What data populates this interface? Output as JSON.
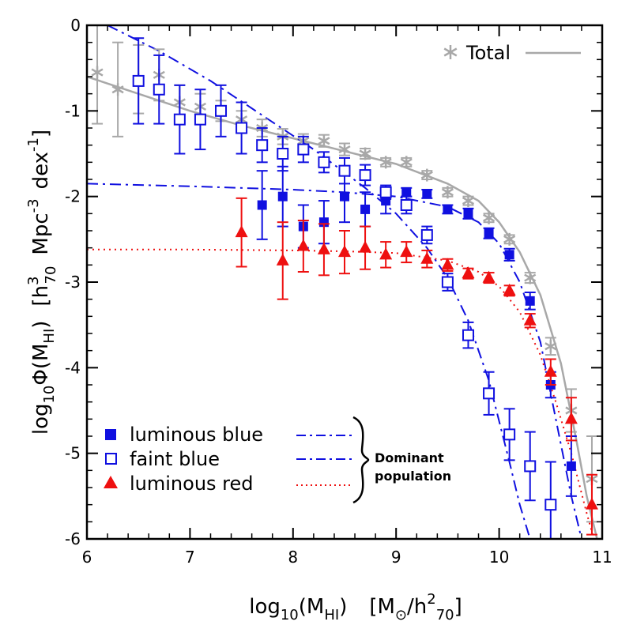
{
  "chart_data": {
    "type": "scatter",
    "xlabel": {
      "base": "log",
      "sub": "10",
      "paren": "(M",
      "paren_sub": "HI",
      "close": ")",
      "unit_open": "[M",
      "unit_sun": "⊙",
      "unit_slash": "/h",
      "unit_sup": "2",
      "unit_sub": "70",
      "unit_close": "]"
    },
    "ylabel": {
      "base": "log",
      "sub": "10",
      "phi": "Φ(M",
      "phi_sub": "HI",
      "close": ")",
      "unit_open": "[h",
      "unit_sup": "3",
      "unit_sub": "70",
      "mpc": "Mpc",
      "mpc_sup": "-3",
      "dex": "dex",
      "dex_sup": "-1",
      "unit_close": "]"
    },
    "xlim": [
      6,
      11
    ],
    "ylim": [
      -6,
      0
    ],
    "x_ticks": [
      "6",
      "7",
      "8",
      "9",
      "10",
      "11"
    ],
    "y_ticks": [
      "0",
      "-1",
      "-2",
      "-3",
      "-4",
      "-5",
      "-6"
    ],
    "colors": {
      "luminous_blue": "#1010e0",
      "faint_blue": "#1010e0",
      "luminous_red": "#ee1010",
      "total": "#a8a8a8"
    },
    "legend": {
      "items": [
        "luminous blue",
        "faint blue",
        "luminous red"
      ],
      "brace_label": [
        "Dominant",
        "population"
      ],
      "total": "Total"
    },
    "series": [
      {
        "name": "Total",
        "marker": "star",
        "color": "#a8a8a8",
        "points": [
          [
            6.1,
            -0.55,
            0.6
          ],
          [
            6.3,
            -0.75,
            0.55
          ],
          [
            6.5,
            -0.63,
            0.4
          ],
          [
            6.7,
            -0.58,
            0.3
          ],
          [
            6.9,
            -0.9,
            0.2
          ],
          [
            7.1,
            -0.95,
            0.15
          ],
          [
            7.3,
            -1.0,
            0.12
          ],
          [
            7.5,
            -1.1,
            0.1
          ],
          [
            7.7,
            -1.2,
            0.1
          ],
          [
            7.9,
            -1.3,
            0.09
          ],
          [
            8.1,
            -1.35,
            0.08
          ],
          [
            8.3,
            -1.35,
            0.07
          ],
          [
            8.5,
            -1.45,
            0.07
          ],
          [
            8.7,
            -1.5,
            0.06
          ],
          [
            8.9,
            -1.6,
            0.05
          ],
          [
            9.1,
            -1.6,
            0.05
          ],
          [
            9.3,
            -1.75,
            0.05
          ],
          [
            9.5,
            -1.95,
            0.05
          ],
          [
            9.7,
            -2.05,
            0.05
          ],
          [
            9.9,
            -2.25,
            0.05
          ],
          [
            10.1,
            -2.5,
            0.05
          ],
          [
            10.3,
            -2.95,
            0.06
          ],
          [
            10.5,
            -3.75,
            0.1
          ],
          [
            10.7,
            -4.5,
            0.25
          ],
          [
            10.9,
            -5.3,
            0.5
          ]
        ]
      },
      {
        "name": "luminous blue",
        "marker": "filled-square",
        "color": "#1010e0",
        "points": [
          [
            7.7,
            -2.1,
            0.4
          ],
          [
            7.9,
            -2.0,
            0.35
          ],
          [
            8.1,
            -2.35,
            0.25
          ],
          [
            8.3,
            -2.3,
            0.25
          ],
          [
            8.5,
            -2.0,
            0.3
          ],
          [
            8.7,
            -2.15,
            0.2
          ],
          [
            8.9,
            -2.05,
            0.15
          ],
          [
            9.1,
            -1.95,
            0.05
          ],
          [
            9.3,
            -1.97,
            0.05
          ],
          [
            9.5,
            -2.15,
            0.05
          ],
          [
            9.7,
            -2.2,
            0.06
          ],
          [
            9.9,
            -2.43,
            0.06
          ],
          [
            10.1,
            -2.68,
            0.07
          ],
          [
            10.3,
            -3.22,
            0.1
          ],
          [
            10.5,
            -4.2,
            0.15
          ],
          [
            10.7,
            -5.15,
            0.35
          ]
        ]
      },
      {
        "name": "faint blue",
        "marker": "open-square",
        "color": "#1010e0",
        "points": [
          [
            6.5,
            -0.65,
            0.5
          ],
          [
            6.7,
            -0.75,
            0.4
          ],
          [
            6.9,
            -1.1,
            0.4
          ],
          [
            7.1,
            -1.1,
            0.35
          ],
          [
            7.3,
            -1.0,
            0.3
          ],
          [
            7.5,
            -1.2,
            0.3
          ],
          [
            7.7,
            -1.4,
            0.2
          ],
          [
            7.9,
            -1.5,
            0.2
          ],
          [
            8.1,
            -1.45,
            0.15
          ],
          [
            8.3,
            -1.6,
            0.12
          ],
          [
            8.5,
            -1.7,
            0.15
          ],
          [
            8.7,
            -1.75,
            0.12
          ],
          [
            8.9,
            -1.95,
            0.08
          ],
          [
            9.1,
            -2.1,
            0.1
          ],
          [
            9.3,
            -2.45,
            0.1
          ],
          [
            9.5,
            -3.0,
            0.1
          ],
          [
            9.7,
            -3.62,
            0.15
          ],
          [
            9.9,
            -4.3,
            0.25
          ],
          [
            10.1,
            -4.78,
            0.3
          ],
          [
            10.3,
            -5.15,
            0.4
          ],
          [
            10.5,
            -5.6,
            0.5
          ]
        ]
      },
      {
        "name": "luminous red",
        "marker": "filled-triangle",
        "color": "#ee1010",
        "points": [
          [
            7.5,
            -2.42,
            0.4
          ],
          [
            7.9,
            -2.75,
            0.45
          ],
          [
            8.1,
            -2.58,
            0.3
          ],
          [
            8.3,
            -2.62,
            0.3
          ],
          [
            8.5,
            -2.65,
            0.25
          ],
          [
            8.7,
            -2.6,
            0.25
          ],
          [
            8.9,
            -2.68,
            0.15
          ],
          [
            9.1,
            -2.65,
            0.12
          ],
          [
            9.3,
            -2.73,
            0.1
          ],
          [
            9.5,
            -2.8,
            0.07
          ],
          [
            9.7,
            -2.9,
            0.06
          ],
          [
            9.9,
            -2.95,
            0.06
          ],
          [
            10.1,
            -3.1,
            0.06
          ],
          [
            10.3,
            -3.45,
            0.08
          ],
          [
            10.5,
            -4.05,
            0.15
          ],
          [
            10.7,
            -4.6,
            0.25
          ],
          [
            10.9,
            -5.6,
            0.35
          ]
        ]
      }
    ],
    "fits": [
      {
        "name": "Total",
        "style": "solid",
        "color": "#a8a8a8",
        "x": [
          6.0,
          6.5,
          7.0,
          7.5,
          8.0,
          8.5,
          9.0,
          9.5,
          9.8,
          10.0,
          10.2,
          10.4,
          10.6,
          10.75,
          10.85,
          10.95
        ],
        "y": [
          -0.6,
          -0.8,
          -1.0,
          -1.17,
          -1.32,
          -1.47,
          -1.62,
          -1.85,
          -2.05,
          -2.3,
          -2.65,
          -3.15,
          -3.95,
          -4.85,
          -5.5,
          -6.0
        ]
      },
      {
        "name": "luminous blue",
        "style": "dashdot",
        "color": "#1010e0",
        "x": [
          6.0,
          7.0,
          8.0,
          8.5,
          9.0,
          9.5,
          9.8,
          10.0,
          10.2,
          10.4,
          10.55,
          10.7,
          10.8
        ],
        "y": [
          -1.85,
          -1.88,
          -1.92,
          -1.95,
          -2.0,
          -2.12,
          -2.3,
          -2.55,
          -3.0,
          -3.7,
          -4.6,
          -5.5,
          -6.0
        ]
      },
      {
        "name": "faint blue",
        "style": "dashdot",
        "color": "#1010e0",
        "x": [
          6.2,
          6.7,
          7.2,
          7.7,
          8.2,
          8.7,
          9.0,
          9.3,
          9.5,
          9.7,
          9.9,
          10.1,
          10.2,
          10.3
        ],
        "y": [
          0.0,
          -0.3,
          -0.65,
          -1.05,
          -1.45,
          -1.9,
          -2.2,
          -2.6,
          -2.95,
          -3.45,
          -4.15,
          -5.1,
          -5.6,
          -6.0
        ]
      },
      {
        "name": "luminous red",
        "style": "dotted",
        "color": "#ee1010",
        "x": [
          6.0,
          7.0,
          8.0,
          8.5,
          9.0,
          9.5,
          9.8,
          10.0,
          10.2,
          10.4,
          10.55,
          10.7,
          10.85,
          10.92
        ],
        "y": [
          -2.62,
          -2.62,
          -2.63,
          -2.64,
          -2.66,
          -2.75,
          -2.88,
          -3.05,
          -3.35,
          -3.85,
          -4.4,
          -5.0,
          -5.7,
          -6.0
        ]
      }
    ]
  }
}
